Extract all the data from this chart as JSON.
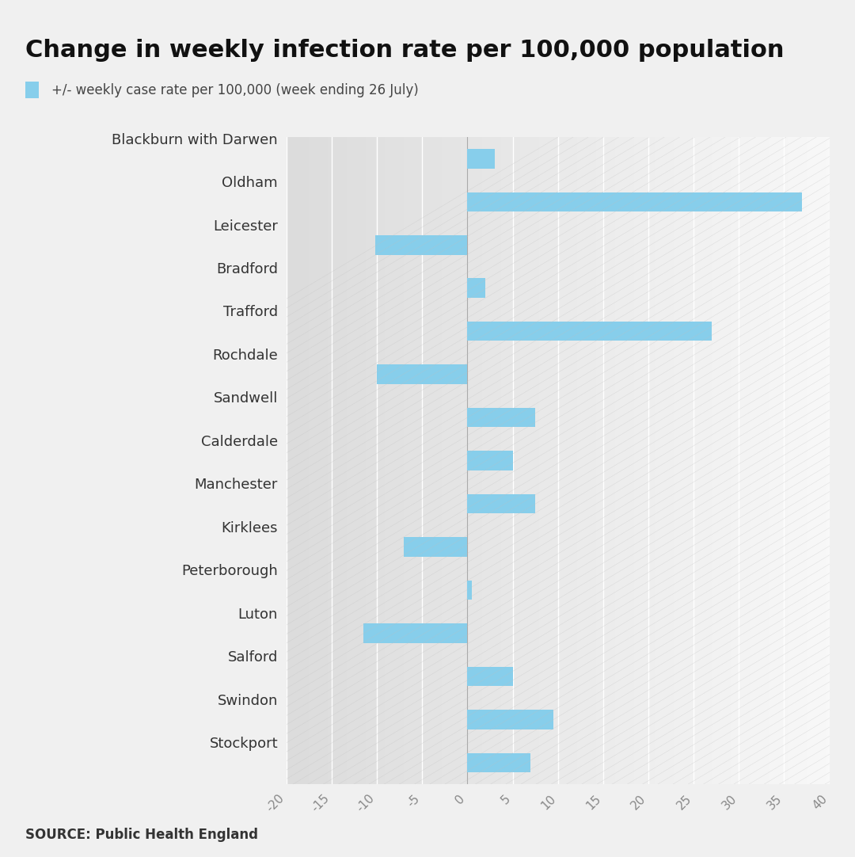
{
  "title": "Change in weekly infection rate per 100,000 population",
  "legend_label": "+/- weekly case rate per 100,000 (week ending 26 July)",
  "source": "SOURCE: Public Health England",
  "categories": [
    "Blackburn with Darwen",
    "Oldham",
    "Leicester",
    "Bradford",
    "Trafford",
    "Rochdale",
    "Sandwell",
    "Calderdale",
    "Manchester",
    "Kirklees",
    "Peterborough",
    "Luton",
    "Salford",
    "Swindon",
    "Stockport"
  ],
  "values": [
    3.0,
    37.0,
    -10.2,
    2.0,
    27.0,
    -10.0,
    7.5,
    5.0,
    7.5,
    -7.0,
    0.5,
    -11.5,
    5.0,
    9.5,
    7.0
  ],
  "bar_color": "#87CEEB",
  "bg_left": "#e8e8e8",
  "bg_right": "#f5f5f5",
  "fig_bg": "#f0f0f0",
  "xlim_min": -20,
  "xlim_max": 40,
  "xticks": [
    -20,
    -15,
    -10,
    -5,
    0,
    5,
    10,
    15,
    20,
    25,
    30,
    35,
    40
  ],
  "title_fontsize": 22,
  "label_fontsize": 13,
  "tick_fontsize": 11,
  "source_fontsize": 12,
  "legend_fontsize": 12
}
